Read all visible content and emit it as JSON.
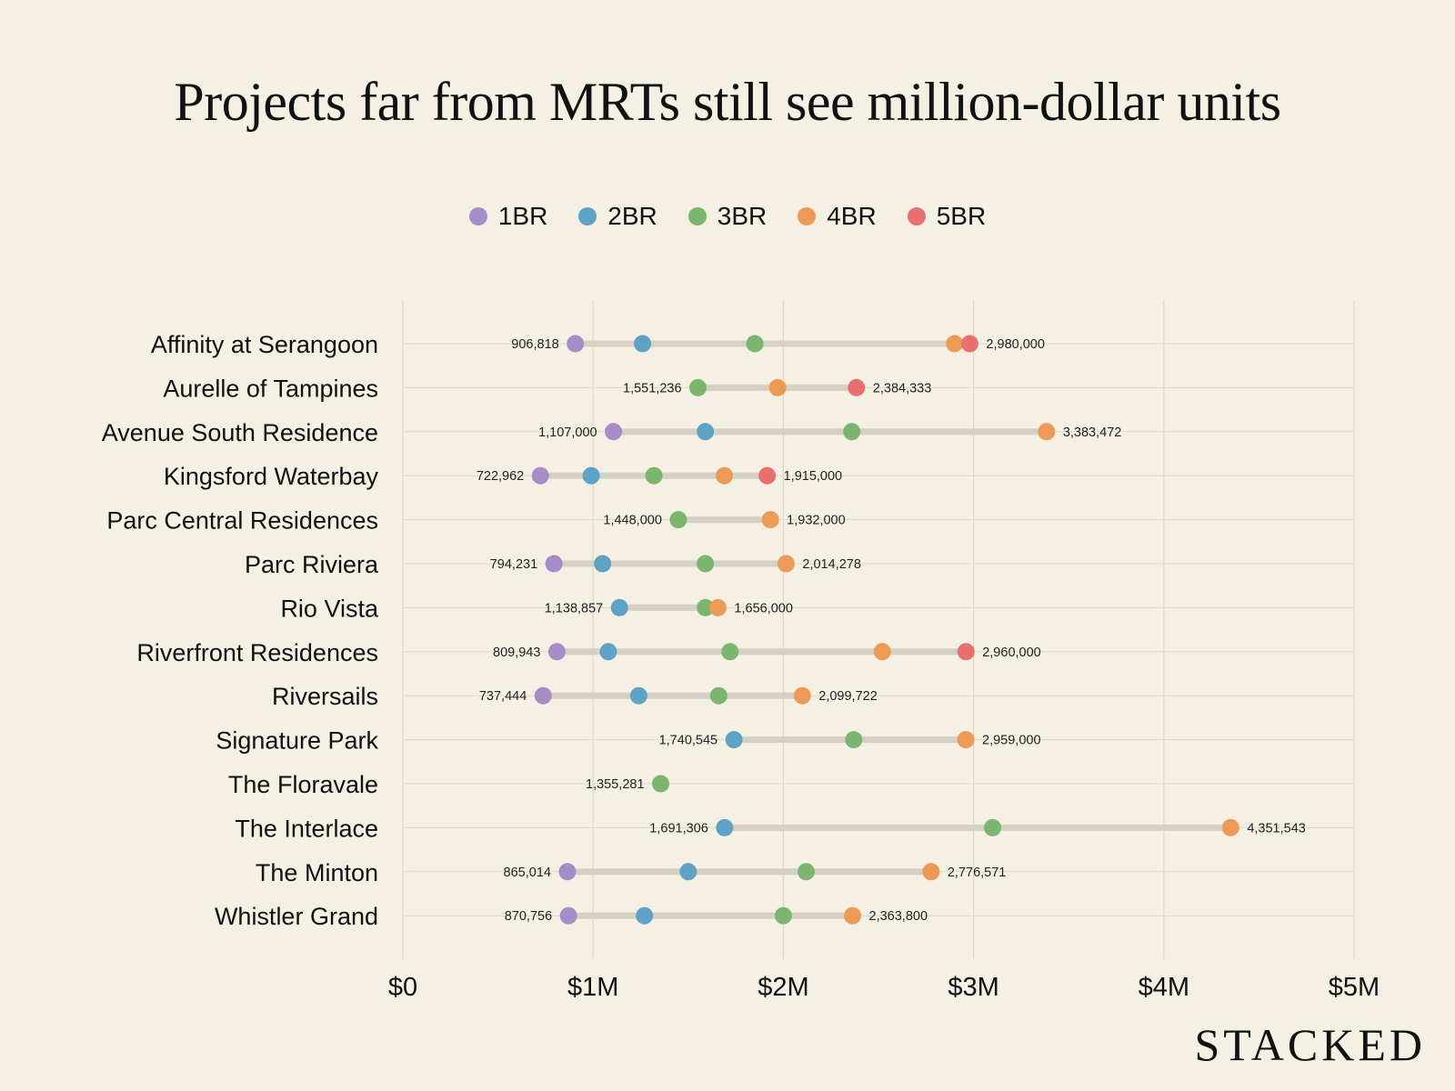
{
  "title": "Projects far from MRTs still see million-dollar units",
  "brand": "STACKED",
  "colors": {
    "background": "#f5f0e4",
    "grid": "#ddd8cc",
    "range_bar": "#d4d0c4",
    "1BR": "#a88cc8",
    "2BR": "#5ea3c6",
    "3BR": "#7bb56e",
    "4BR": "#ec9a55",
    "5BR": "#e8706e"
  },
  "legend": [
    {
      "key": "1BR",
      "label": "1BR"
    },
    {
      "key": "2BR",
      "label": "2BR"
    },
    {
      "key": "3BR",
      "label": "3BR"
    },
    {
      "key": "4BR",
      "label": "4BR"
    },
    {
      "key": "5BR",
      "label": "5BR"
    }
  ],
  "chart_data": {
    "type": "scatter",
    "subtype": "dumbbell",
    "title": "Projects far from MRTs still see million-dollar units",
    "xlabel": "",
    "ylabel": "",
    "xlim": [
      0,
      5000000
    ],
    "xticks": [
      {
        "value": 0,
        "label": "$0"
      },
      {
        "value": 1000000,
        "label": "$1M"
      },
      {
        "value": 2000000,
        "label": "$2M"
      },
      {
        "value": 3000000,
        "label": "$3M"
      },
      {
        "value": 4000000,
        "label": "$4M"
      },
      {
        "value": 5000000,
        "label": "$5M"
      }
    ],
    "grid": true,
    "legend_position": "top-center",
    "series_names": [
      "1BR",
      "2BR",
      "3BR",
      "4BR",
      "5BR"
    ],
    "projects": [
      {
        "name": "Affinity at Serangoon",
        "min_label": "906,818",
        "max_label": "2,980,000",
        "values": {
          "1BR": 906818,
          "2BR": 1260000,
          "3BR": 1850000,
          "4BR": 2900000,
          "5BR": 2980000
        }
      },
      {
        "name": "Aurelle of Tampines",
        "min_label": "1,551,236",
        "max_label": "2,384,333",
        "values": {
          "3BR": 1551236,
          "4BR": 1970000,
          "5BR": 2384333
        }
      },
      {
        "name": "Avenue South Residence",
        "min_label": "1,107,000",
        "max_label": "3,383,472",
        "values": {
          "1BR": 1107000,
          "2BR": 1590000,
          "3BR": 2360000,
          "4BR": 3383472
        }
      },
      {
        "name": "Kingsford Waterbay",
        "min_label": "722,962",
        "max_label": "1,915,000",
        "values": {
          "1BR": 722962,
          "2BR": 990000,
          "3BR": 1320000,
          "4BR": 1690000,
          "5BR": 1915000
        }
      },
      {
        "name": "Parc Central Residences",
        "min_label": "1,448,000",
        "max_label": "1,932,000",
        "values": {
          "3BR": 1448000,
          "4BR": 1932000
        }
      },
      {
        "name": "Parc Riviera",
        "min_label": "794,231",
        "max_label": "2,014,278",
        "values": {
          "1BR": 794231,
          "2BR": 1050000,
          "3BR": 1590000,
          "4BR": 2014278
        }
      },
      {
        "name": "Rio Vista",
        "min_label": "1,138,857",
        "max_label": "1,656,000",
        "values": {
          "2BR": 1138857,
          "3BR": 1590000,
          "4BR": 1656000
        }
      },
      {
        "name": "Riverfront Residences",
        "min_label": "809,943",
        "max_label": "2,960,000",
        "values": {
          "1BR": 809943,
          "2BR": 1080000,
          "3BR": 1720000,
          "4BR": 2520000,
          "5BR": 2960000
        }
      },
      {
        "name": "Riversails",
        "min_label": "737,444",
        "max_label": "2,099,722",
        "values": {
          "1BR": 737444,
          "2BR": 1240000,
          "3BR": 1660000,
          "4BR": 2099722
        }
      },
      {
        "name": "Signature Park",
        "min_label": "1,740,545",
        "max_label": "2,959,000",
        "values": {
          "2BR": 1740545,
          "3BR": 2370000,
          "4BR": 2959000
        }
      },
      {
        "name": "The Floravale",
        "min_label": "1,355,281",
        "max_label": "",
        "values": {
          "3BR": 1355281
        }
      },
      {
        "name": "The Interlace",
        "min_label": "1,691,306",
        "max_label": "4,351,543",
        "values": {
          "2BR": 1691306,
          "3BR": 3100000,
          "4BR": 4351543
        }
      },
      {
        "name": "The Minton",
        "min_label": "865,014",
        "max_label": "2,776,571",
        "values": {
          "1BR": 865014,
          "2BR": 1500000,
          "3BR": 2120000,
          "4BR": 2776571
        }
      },
      {
        "name": "Whistler Grand",
        "min_label": "870,756",
        "max_label": "2,363,800",
        "values": {
          "1BR": 870756,
          "2BR": 1270000,
          "3BR": 2000000,
          "4BR": 2363800
        }
      }
    ]
  }
}
